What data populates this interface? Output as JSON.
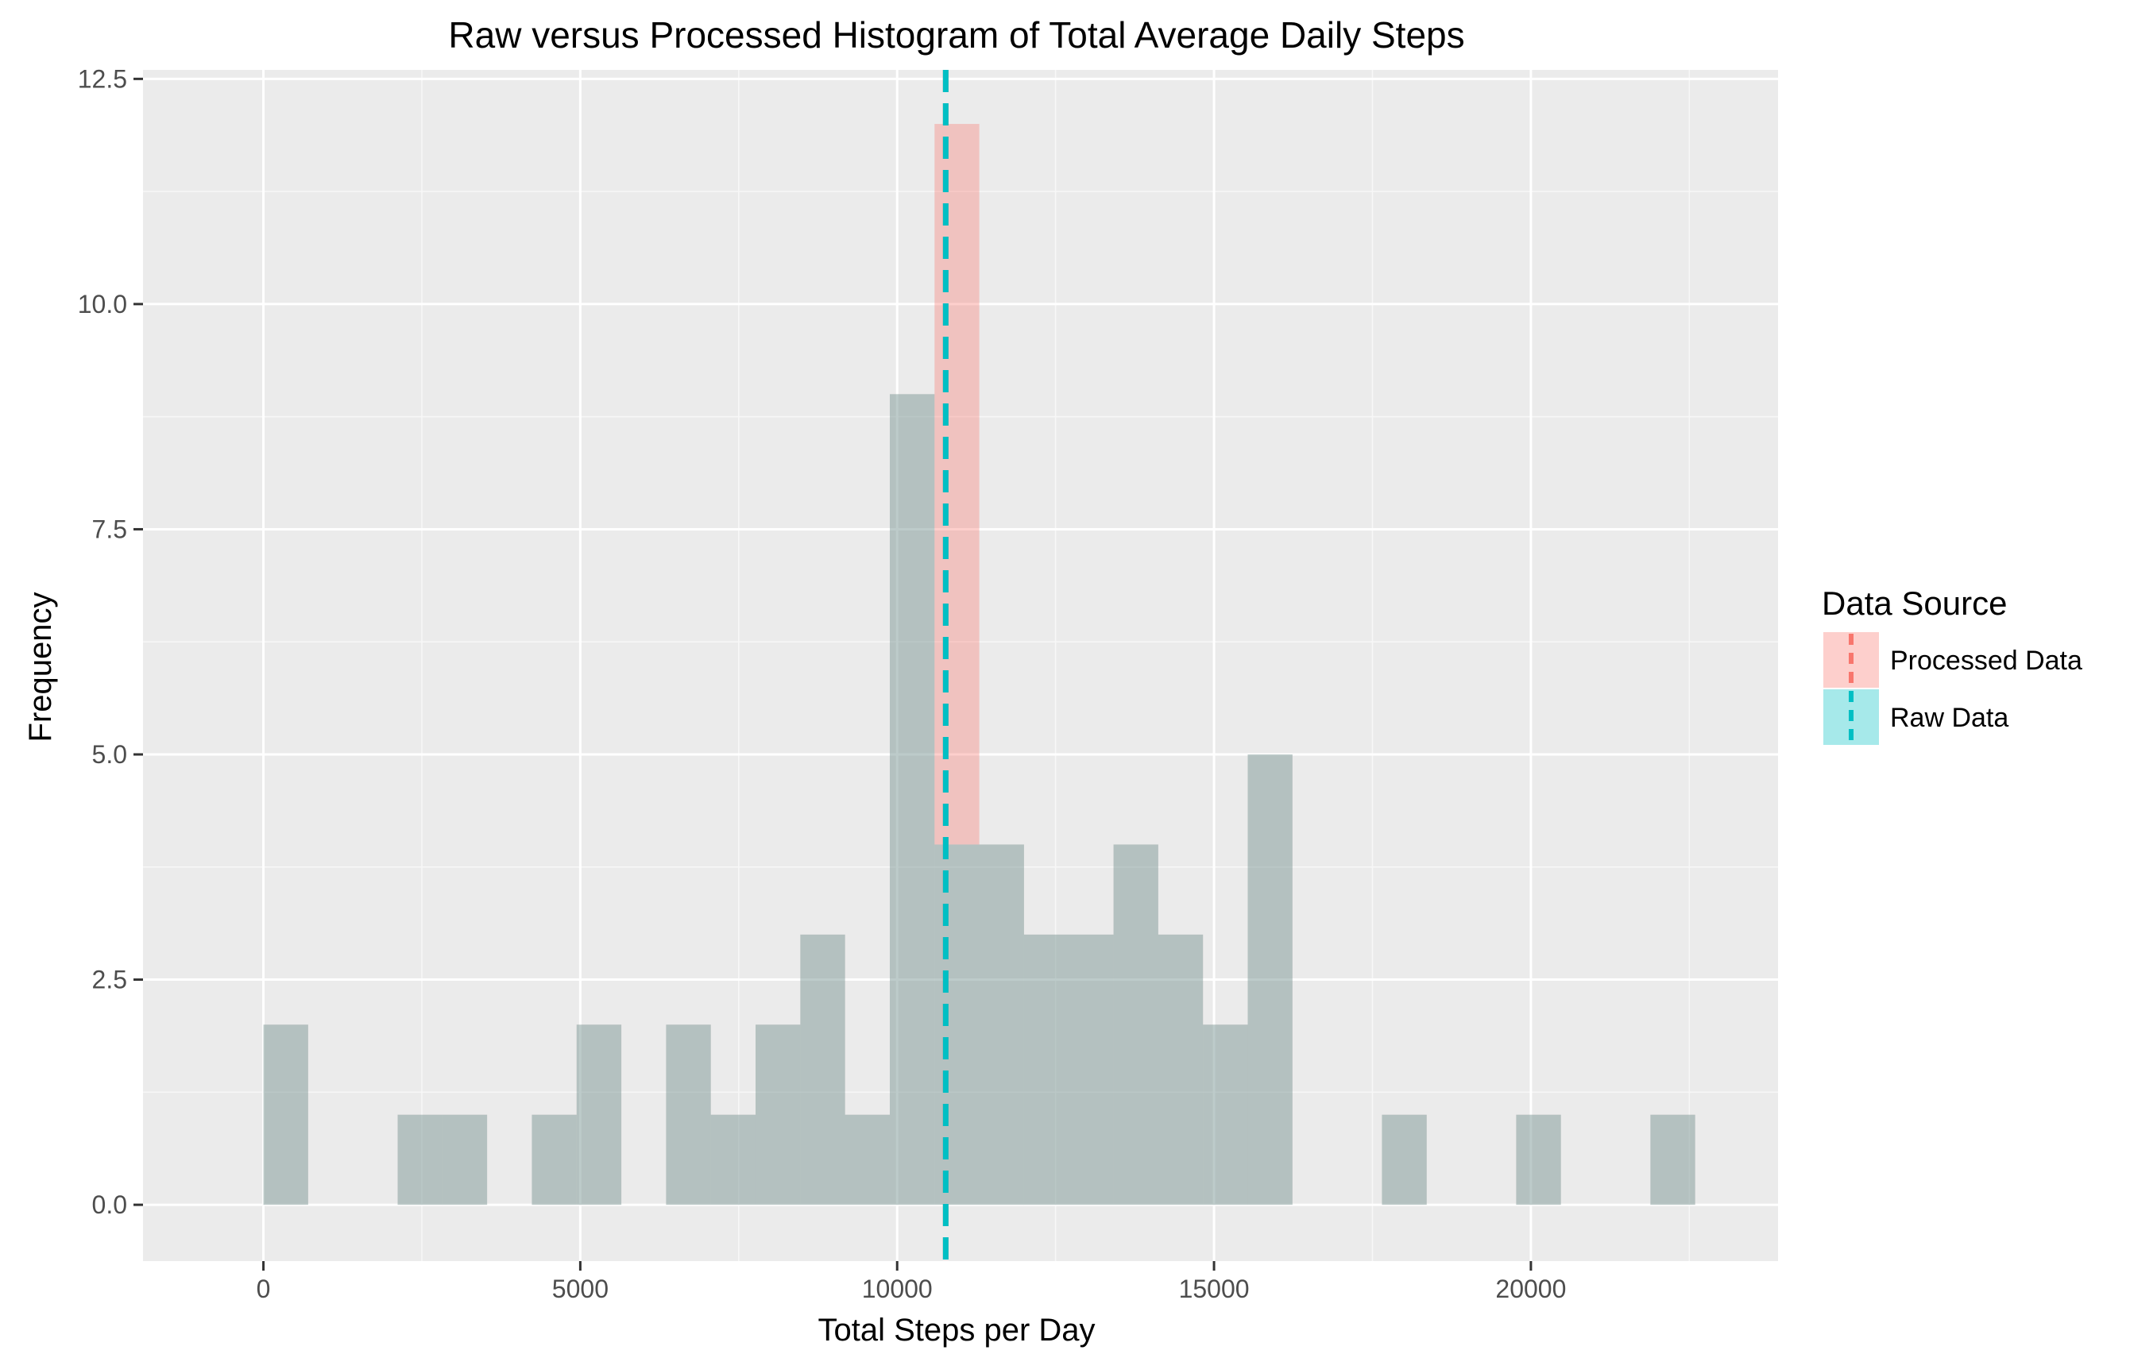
{
  "chart_data": {
    "type": "histogram",
    "title": "Raw versus Processed Histogram of Total Average Daily Steps",
    "xlabel": "Total Steps per Day",
    "ylabel": "Frequency",
    "xlim": [
      -1900,
      23900
    ],
    "ylim": [
      -0.625,
      12.6
    ],
    "x_ticks": [
      0,
      5000,
      10000,
      15000,
      20000
    ],
    "x_tick_labels": [
      "0",
      "5000",
      "10000",
      "15000",
      "20000"
    ],
    "y_ticks": [
      0,
      2.5,
      5,
      7.5,
      10,
      12.5
    ],
    "y_tick_labels": [
      "0.0",
      "2.5",
      "5.0",
      "7.5",
      "10.0",
      "12.5"
    ],
    "grid": true,
    "bin_width": 706,
    "bin_start": 0,
    "series": [
      {
        "name": "Processed Data",
        "color": "#F8766D",
        "values": [
          2,
          0,
          0,
          1,
          1,
          0,
          1,
          2,
          0,
          2,
          1,
          2,
          3,
          1,
          9,
          12,
          4,
          3,
          3,
          4,
          3,
          2,
          5,
          0,
          0,
          1,
          0,
          0,
          1,
          0,
          0,
          1
        ]
      },
      {
        "name": "Raw Data",
        "color": "#00BFC4",
        "values": [
          2,
          0,
          0,
          1,
          1,
          0,
          1,
          2,
          0,
          2,
          1,
          2,
          3,
          1,
          9,
          4,
          4,
          3,
          3,
          4,
          3,
          2,
          5,
          0,
          0,
          1,
          0,
          0,
          1,
          0,
          0,
          1
        ]
      }
    ],
    "mean_lines": [
      {
        "series": "Processed Data",
        "x": 10766,
        "color": "#F8766D"
      },
      {
        "series": "Raw Data",
        "x": 10766,
        "color": "#00BFC4"
      }
    ],
    "legend": {
      "title": "Data Source",
      "position": "right",
      "items": [
        "Processed Data",
        "Raw Data"
      ]
    }
  }
}
